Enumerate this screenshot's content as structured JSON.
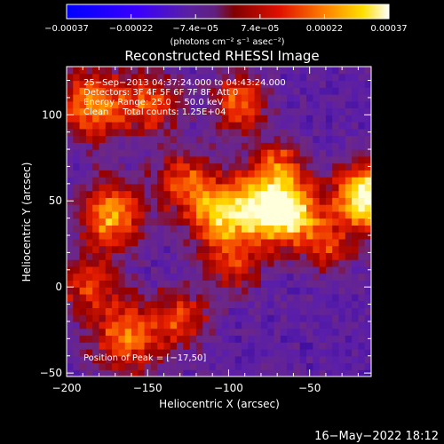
{
  "chart_data": {
    "type": "heatmap",
    "title": "Reconstructed RHESSI Image",
    "xlabel": "Heliocentric X (arcsec)",
    "ylabel": "Heliocentric Y (arcsec)",
    "xlim": [
      -200,
      -12
    ],
    "ylim": [
      -52,
      128
    ],
    "x_ticks": [
      -200,
      -150,
      -100,
      -50
    ],
    "x_tick_labels": [
      "−200",
      "−150",
      "−100",
      "−50"
    ],
    "y_ticks": [
      -50,
      0,
      50,
      100
    ],
    "y_tick_labels": [
      "−50",
      "0",
      "50",
      "100"
    ],
    "colorbar": {
      "range": [
        -0.00037,
        0.00037
      ],
      "tick_labels": [
        "−0.00037",
        "−0.00022",
        "−7.4e−05",
        "7.4e−05",
        "0.00022",
        "0.00037"
      ],
      "unit_label": "(photons cm⁻² s⁻¹ asec⁻²)"
    },
    "annotations": [
      "25−Sep−2013 04:37:24.000 to 04:43:24.000",
      "Detectors: 3F 4F 5F 6F 7F 8F, Att 0",
      "Energy Range: 25.0 − 50.0 keV",
      "Clean     Total counts: 1.25E+04"
    ],
    "peak_label": "Position of Peak = [−17,50]",
    "peak": [
      -17,
      50
    ],
    "grid": false
  },
  "footer": {
    "timestamp": "16−May−2022 18:12"
  }
}
